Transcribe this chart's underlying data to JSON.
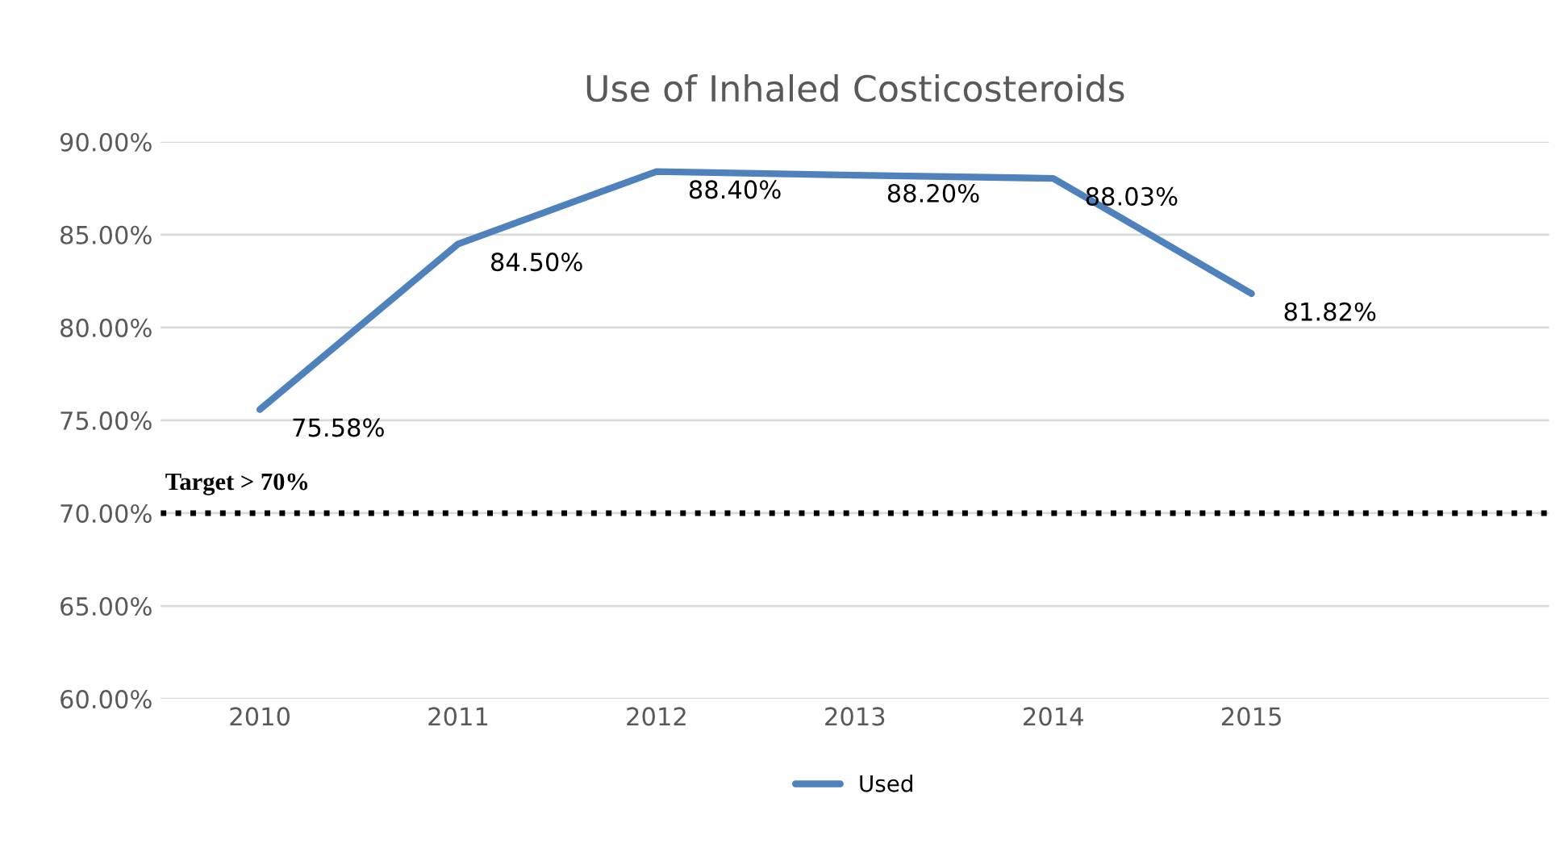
{
  "chart_data": {
    "type": "line",
    "title": "Use of Inhaled Costicosteroids",
    "categories": [
      "2010",
      "2011",
      "2012",
      "2013",
      "2014",
      "2015",
      null
    ],
    "series": [
      {
        "name": "Used",
        "color": "#4f81bd",
        "values": [
          75.58,
          84.5,
          88.4,
          88.2,
          88.03,
          81.82,
          null
        ],
        "value_labels": [
          "75.58%",
          "84.50%",
          "88.40%",
          "88.20%",
          "88.03%",
          "81.82%",
          null
        ]
      }
    ],
    "ylim": [
      60,
      90
    ],
    "yticks": [
      {
        "value": 60,
        "label": "60.00%"
      },
      {
        "value": 65,
        "label": "65.00%"
      },
      {
        "value": 70,
        "label": "70.00%"
      },
      {
        "value": 75,
        "label": "75.00%"
      },
      {
        "value": 80,
        "label": "80.00%"
      },
      {
        "value": 85,
        "label": "85.00%"
      },
      {
        "value": 90,
        "label": "90.00%"
      }
    ],
    "ref_lines": [
      {
        "axis": "y",
        "value": 70,
        "label": "Target > 70%",
        "color": "#000000",
        "line_style": "dotted"
      }
    ],
    "grid": "y",
    "legend": "bottom",
    "marker": "none",
    "line_style": "solid"
  }
}
